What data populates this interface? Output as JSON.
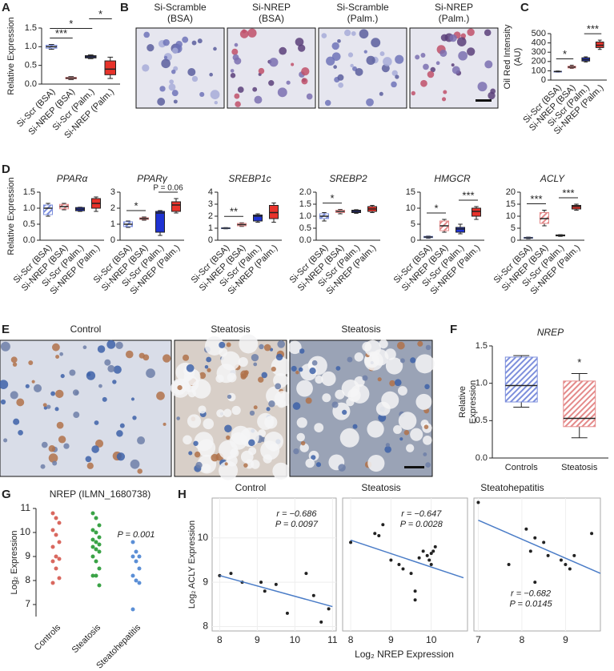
{
  "chart_data": [
    {
      "type": "box",
      "panel": "A",
      "ylabel": "Relative Expression",
      "categories": [
        "Si-Scr (BSA)",
        "Si-NREP (BSA)",
        "Si-Scr (Palm.)",
        "Si-NREP (Palm.)"
      ],
      "colors": [
        "#7d8fdc",
        "#e48a8a",
        "#1f33d3",
        "#e8332b"
      ],
      "hatch": [
        true,
        true,
        false,
        false
      ],
      "boxes": [
        {
          "min": 0.93,
          "q1": 0.96,
          "median": 1.0,
          "q3": 1.04,
          "max": 1.06
        },
        {
          "min": 0.12,
          "q1": 0.14,
          "median": 0.16,
          "q3": 0.18,
          "max": 0.2
        },
        {
          "min": 0.68,
          "q1": 0.7,
          "median": 0.73,
          "q3": 0.76,
          "max": 0.78
        },
        {
          "min": 0.15,
          "q1": 0.25,
          "median": 0.4,
          "q3": 0.62,
          "max": 0.72
        }
      ],
      "ylim": [
        0,
        1.5
      ],
      "yticks": [
        {
          "value": 0,
          "label": "0.0"
        },
        0.5,
        {
          "value": 1,
          "label": "1.0"
        },
        1.5
      ],
      "annotations": [
        {
          "text": "***",
          "from": 0,
          "to": 1
        },
        {
          "text": "*",
          "from": 0,
          "to": 2
        },
        {
          "text": "*",
          "from": 2,
          "to": 3
        }
      ]
    },
    {
      "type": "box",
      "panel": "C",
      "ylabel": [
        "Oil Red Intensity",
        "(AU)"
      ],
      "categories": [
        "Si-Scr (BSA)",
        "Si-NREP (BSA)",
        "Si-Scr (Palm.)",
        "Si-NREP (Palm.)"
      ],
      "colors": [
        "#7d8fdc",
        "#e48a8a",
        "#1f33d3",
        "#e8332b"
      ],
      "hatch": [
        true,
        true,
        false,
        false
      ],
      "boxes": [
        {
          "min": 85,
          "q1": 88,
          "median": 92,
          "q3": 95,
          "max": 98
        },
        {
          "min": 125,
          "q1": 130,
          "median": 140,
          "q3": 150,
          "max": 160
        },
        {
          "min": 195,
          "q1": 205,
          "median": 220,
          "q3": 240,
          "max": 250
        },
        {
          "min": 330,
          "q1": 350,
          "median": 375,
          "q3": 410,
          "max": 430
        }
      ],
      "ylim": [
        0,
        500
      ],
      "yticks": [
        0,
        100,
        200,
        300,
        400,
        500
      ],
      "annotations": [
        {
          "text": "*",
          "from": 0,
          "to": 1
        },
        {
          "text": "***",
          "from": 2,
          "to": 3
        }
      ]
    },
    {
      "type": "box",
      "panel": "D",
      "title": "PPARα",
      "ylabel": "Relative Expression",
      "categories": [
        "Si-Scr (BSA)",
        "Si-NREP (BSA)",
        "Si-Scr (Palm.)",
        "Si-NREP (Palm.)"
      ],
      "colors": [
        "#7d8fdc",
        "#e48a8a",
        "#1f33d3",
        "#e8332b"
      ],
      "hatch": [
        true,
        true,
        false,
        false
      ],
      "boxes": [
        {
          "min": 0.75,
          "q1": 0.8,
          "median": 1.0,
          "q3": 1.1,
          "max": 1.15
        },
        {
          "min": 0.95,
          "q1": 0.98,
          "median": 1.05,
          "q3": 1.12,
          "max": 1.15
        },
        {
          "min": 0.9,
          "q1": 0.92,
          "median": 0.97,
          "q3": 1.02,
          "max": 1.03
        },
        {
          "min": 0.9,
          "q1": 1.0,
          "median": 1.15,
          "q3": 1.3,
          "max": 1.35
        }
      ],
      "ylim": [
        0,
        1.5
      ],
      "yticks": [
        {
          "value": 0,
          "label": "0.0"
        },
        0.5,
        {
          "value": 1,
          "label": "1.0"
        },
        1.5
      ],
      "annotations": []
    },
    {
      "type": "box",
      "title": "PPARγ",
      "categories": [
        "Si-Scr (BSA)",
        "Si-NREP (BSA)",
        "Si-Scr (Palm.)",
        "Si-NREP (Palm.)"
      ],
      "colors": [
        "#7d8fdc",
        "#e48a8a",
        "#1f33d3",
        "#e8332b"
      ],
      "hatch": [
        true,
        true,
        false,
        false
      ],
      "boxes": [
        {
          "min": 0.8,
          "q1": 0.85,
          "median": 1.0,
          "q3": 1.15,
          "max": 1.2
        },
        {
          "min": 1.25,
          "q1": 1.3,
          "median": 1.35,
          "q3": 1.4,
          "max": 1.45
        },
        {
          "min": 0.3,
          "q1": 0.5,
          "median": 1.7,
          "q3": 1.8,
          "max": 1.85
        },
        {
          "min": 1.7,
          "q1": 1.8,
          "median": 2.2,
          "q3": 2.4,
          "max": 2.6
        }
      ],
      "ylim": [
        0,
        3
      ],
      "yticks": [
        0,
        1,
        2,
        3
      ],
      "annotations": [
        {
          "text": "*",
          "from": 0,
          "to": 1
        },
        {
          "text": "P = 0.06",
          "from": 2,
          "to": 3
        }
      ]
    },
    {
      "type": "box",
      "title": "SREBP1c",
      "categories": [
        "Si-Scr (BSA)",
        "Si-NREP (BSA)",
        "Si-Scr (Palm.)",
        "Si-NREP (Palm.)"
      ],
      "colors": [
        "#7d8fdc",
        "#e48a8a",
        "#1f33d3",
        "#e8332b"
      ],
      "hatch": [
        true,
        true,
        false,
        false
      ],
      "boxes": [
        {
          "min": 0.95,
          "q1": 0.97,
          "median": 1.0,
          "q3": 1.03,
          "max": 1.05
        },
        {
          "min": 1.15,
          "q1": 1.2,
          "median": 1.3,
          "q3": 1.4,
          "max": 1.45
        },
        {
          "min": 1.5,
          "q1": 1.6,
          "median": 2.0,
          "q3": 2.1,
          "max": 2.2
        },
        {
          "min": 1.5,
          "q1": 1.8,
          "median": 2.3,
          "q3": 2.9,
          "max": 3.1
        }
      ],
      "ylim": [
        0,
        4
      ],
      "yticks": [
        0,
        1,
        2,
        3,
        4
      ],
      "annotations": [
        {
          "text": "**",
          "from": 0,
          "to": 1
        }
      ]
    },
    {
      "type": "box",
      "title": "SREBP2",
      "categories": [
        "Si-Scr (BSA)",
        "Si-NREP (BSA)",
        "Si-Scr (Palm.)",
        "Si-NREP (Palm.)"
      ],
      "colors": [
        "#7d8fdc",
        "#e48a8a",
        "#1f33d3",
        "#e8332b"
      ],
      "hatch": [
        true,
        true,
        false,
        false
      ],
      "boxes": [
        {
          "min": 0.8,
          "q1": 0.9,
          "median": 1.0,
          "q3": 1.1,
          "max": 1.15
        },
        {
          "min": 1.1,
          "q1": 1.15,
          "median": 1.2,
          "q3": 1.25,
          "max": 1.28
        },
        {
          "min": 1.12,
          "q1": 1.15,
          "median": 1.2,
          "q3": 1.25,
          "max": 1.27
        },
        {
          "min": 1.15,
          "q1": 1.2,
          "median": 1.3,
          "q3": 1.4,
          "max": 1.45
        }
      ],
      "ylim": [
        0,
        2
      ],
      "yticks": [
        {
          "value": 0,
          "label": "0.0"
        },
        0.5,
        {
          "value": 1,
          "label": "1.0"
        },
        1.5,
        {
          "value": 2,
          "label": "2.0"
        }
      ],
      "annotations": [
        {
          "text": "*",
          "from": 0,
          "to": 1
        }
      ]
    },
    {
      "type": "box",
      "title": "HMGCR",
      "categories": [
        "Si-Scr (BSA)",
        "Si-NREP (BSA)",
        "Si-Scr (Palm.)",
        "Si-NREP (Palm.)"
      ],
      "colors": [
        "#7d8fdc",
        "#e48a8a",
        "#1f33d3",
        "#e8332b"
      ],
      "hatch": [
        true,
        true,
        false,
        false
      ],
      "boxes": [
        {
          "min": 0.6,
          "q1": 0.8,
          "median": 1.0,
          "q3": 1.2,
          "max": 1.3
        },
        {
          "min": 2.5,
          "q1": 3.0,
          "median": 4.5,
          "q3": 6.0,
          "max": 6.5
        },
        {
          "min": 2.0,
          "q1": 2.5,
          "median": 3.5,
          "q3": 4.0,
          "max": 5.0
        },
        {
          "min": 6.5,
          "q1": 7.5,
          "median": 9.0,
          "q3": 10.0,
          "max": 10.5
        }
      ],
      "ylim": [
        0,
        15
      ],
      "yticks": [
        0,
        5,
        10,
        15
      ],
      "annotations": [
        {
          "text": "*",
          "from": 0,
          "to": 1
        },
        {
          "text": "***",
          "from": 2,
          "to": 3
        }
      ]
    },
    {
      "type": "box",
      "title": "ACLY",
      "categories": [
        "Si-Scr (BSA)",
        "Si-NREP (BSA)",
        "Si-Scr (Palm.)",
        "Si-NREP (Palm.)"
      ],
      "colors": [
        "#7d8fdc",
        "#e48a8a",
        "#1f33d3",
        "#e8332b"
      ],
      "hatch": [
        true,
        true,
        false,
        false
      ],
      "boxes": [
        {
          "min": 0.6,
          "q1": 0.8,
          "median": 1.0,
          "q3": 1.2,
          "max": 1.3
        },
        {
          "min": 6.0,
          "q1": 7.0,
          "median": 9.0,
          "q3": 11.5,
          "max": 12.5
        },
        {
          "min": 1.6,
          "q1": 1.8,
          "median": 2.0,
          "q3": 2.2,
          "max": 2.3
        },
        {
          "min": 12.5,
          "q1": 13.0,
          "median": 14.0,
          "q3": 14.5,
          "max": 15.0
        }
      ],
      "ylim": [
        0,
        20
      ],
      "yticks": [
        0,
        5,
        10,
        15,
        20
      ],
      "annotations": [
        {
          "text": "***",
          "from": 0,
          "to": 1
        },
        {
          "text": "***",
          "from": 2,
          "to": 3
        }
      ]
    },
    {
      "type": "box",
      "panel": "F",
      "title": "NREP",
      "ylabel": [
        "Relative",
        "Expression"
      ],
      "categories": [
        "Controls",
        "Steatosis"
      ],
      "colors": [
        "#7d8fdc",
        "#e48a8a"
      ],
      "hatch": [
        true,
        true
      ],
      "boxes": [
        {
          "min": 0.68,
          "q1": 0.75,
          "median": 0.97,
          "q3": 1.35,
          "max": 1.37
        },
        {
          "min": 0.27,
          "q1": 0.42,
          "median": 0.53,
          "q3": 1.03,
          "max": 1.13
        }
      ],
      "ylim": [
        0,
        1.5
      ],
      "yticks": [
        {
          "value": 0,
          "label": "0.0"
        },
        0.5,
        {
          "value": 1,
          "label": "1.0"
        },
        1.5
      ],
      "annotations": [
        {
          "text": "*",
          "from": 1,
          "to": 1
        }
      ]
    },
    {
      "type": "strip",
      "panel": "G",
      "title": "NREP (ILMN_1680738)",
      "ylabel": "Log₂ Expression",
      "categories": [
        "Controls",
        "Steatosis",
        "Steatohepatitis"
      ],
      "colors": [
        "#d9685f",
        "#3aa346",
        "#5b8fd6"
      ],
      "values": [
        [
          10.8,
          10.6,
          10.4,
          10.1,
          9.9,
          9.6,
          9.4,
          9.0,
          8.9,
          8.8,
          8.5,
          8.1,
          7.9
        ],
        [
          10.8,
          10.6,
          10.3,
          10.1,
          10.0,
          9.8,
          9.7,
          9.6,
          9.5,
          9.4,
          9.3,
          9.2,
          9.0,
          8.8,
          8.5,
          8.2,
          8.2,
          7.8
        ],
        [
          9.6,
          9.2,
          9.0,
          9.0,
          8.8,
          8.5,
          8.2,
          8.0,
          7.9,
          6.8
        ]
      ],
      "ylim": [
        6.5,
        11
      ],
      "yticks": [
        7,
        8,
        9,
        10,
        11
      ],
      "annotations": [
        "P = 0.001"
      ]
    },
    {
      "type": "scatter",
      "panel": "H",
      "title": "Control",
      "ylabel": "Log₂ ACLY Expression",
      "xlabel": "Log₂ NREP Expression",
      "x": [
        8.0,
        8.3,
        8.6,
        9.1,
        9.2,
        9.5,
        9.8,
        10.3,
        10.5,
        10.7,
        10.9
      ],
      "y": [
        9.15,
        9.2,
        9.0,
        9.0,
        8.8,
        8.95,
        8.3,
        9.2,
        8.7,
        8.1,
        8.4
      ],
      "fit": {
        "x": [
          8.0,
          11.0
        ],
        "y": [
          9.15,
          8.45
        ]
      },
      "xlim": [
        7.8,
        11.1
      ],
      "xticks": [
        8,
        9,
        10,
        11
      ],
      "ylim": [
        7.9,
        10.9
      ],
      "yticks": [
        8,
        9,
        10
      ],
      "annotations": [
        "r = −0.686",
        "P = 0.0097"
      ]
    },
    {
      "type": "scatter",
      "title": "Steatosis",
      "x": [
        8.0,
        8.6,
        8.7,
        8.8,
        9.0,
        9.2,
        9.3,
        9.5,
        9.6,
        9.6,
        9.7,
        9.8,
        9.9,
        9.95,
        10.0,
        10.0,
        10.05,
        10.1
      ],
      "y": [
        9.9,
        10.1,
        10.05,
        10.3,
        9.5,
        9.4,
        9.3,
        9.2,
        8.8,
        8.6,
        9.55,
        9.7,
        9.6,
        9.5,
        9.65,
        9.4,
        9.7,
        9.8
      ],
      "fit": {
        "x": [
          8.0,
          10.8
        ],
        "y": [
          9.95,
          9.1
        ]
      },
      "xlim": [
        7.8,
        10.9
      ],
      "xticks": [
        8,
        9,
        10
      ],
      "ylim": [
        7.9,
        10.9
      ],
      "annotations": [
        "r = −0.647",
        "P = 0.0028"
      ]
    },
    {
      "type": "scatter",
      "title": "Steatohepatitis",
      "x": [
        7.0,
        7.7,
        8.1,
        8.2,
        8.3,
        8.3,
        8.5,
        8.6,
        8.9,
        9.0,
        9.1,
        9.2,
        9.6
      ],
      "y": [
        10.8,
        9.4,
        10.2,
        9.7,
        10.0,
        9.0,
        9.9,
        9.6,
        9.5,
        9.4,
        9.3,
        9.6,
        10.1
      ],
      "fit": {
        "x": [
          7.0,
          9.8
        ],
        "y": [
          10.4,
          9.2
        ]
      },
      "xlim": [
        6.9,
        9.8
      ],
      "xticks": [
        7,
        8,
        9
      ],
      "ylim": [
        7.9,
        10.9
      ],
      "annotations": [
        "r = −0.682",
        "P = 0.0145"
      ]
    }
  ],
  "images": [
    {
      "panel": "B",
      "captions": [
        [
          "Si-Scramble",
          "(BSA)"
        ],
        [
          "Si-NREP",
          "(BSA)"
        ],
        [
          "Si-Scramble",
          "(Palm.)"
        ],
        [
          "Si-NREP",
          "(Palm.)"
        ]
      ]
    },
    {
      "panel": "E",
      "captions": [
        "Control",
        "Steatosis",
        "Steatosis"
      ]
    }
  ]
}
